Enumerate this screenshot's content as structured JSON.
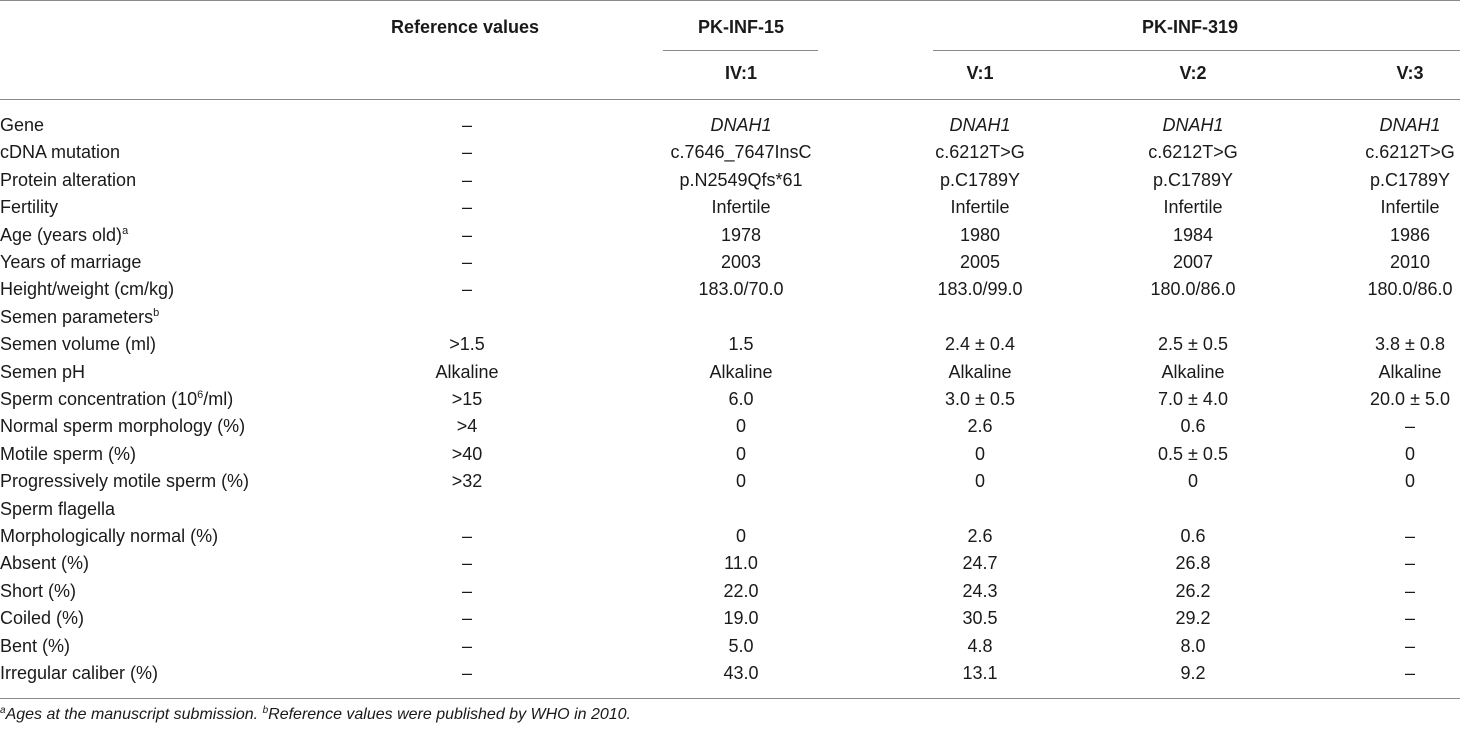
{
  "header": {
    "reference": "Reference values",
    "group1": "PK-INF-15",
    "group2": "PK-INF-319",
    "sub1": "IV:1",
    "sub2": "V:1",
    "sub3": "V:2",
    "sub4": "V:3"
  },
  "rows": [
    {
      "label": "Gene",
      "ref": "–",
      "v1": "DNAH1",
      "v2": "DNAH1",
      "v3": "DNAH1",
      "v4": "DNAH1"
    },
    {
      "label": "cDNA mutation",
      "ref": "–",
      "v1": "c.7646_7647InsC",
      "v2": "c.6212T>G",
      "v3": "c.6212T>G",
      "v4": "c.6212T>G"
    },
    {
      "label": "Protein alteration",
      "ref": "–",
      "v1": "p.N2549Qfs*61",
      "v2": "p.C1789Y",
      "v3": "p.C1789Y",
      "v4": "p.C1789Y"
    },
    {
      "label": "Fertility",
      "ref": "–",
      "v1": "Infertile",
      "v2": "Infertile",
      "v3": "Infertile",
      "v4": "Infertile"
    },
    {
      "label": "Age (years old)",
      "sup": "a",
      "ref": "–",
      "v1": "1978",
      "v2": "1980",
      "v3": "1984",
      "v4": "1986"
    },
    {
      "label": "Years of marriage",
      "ref": "–",
      "v1": "2003",
      "v2": "2005",
      "v3": "2007",
      "v4": "2010"
    },
    {
      "label": "Height/weight (cm/kg)",
      "ref": "–",
      "v1": "183.0/70.0",
      "v2": "183.0/99.0",
      "v3": "180.0/86.0",
      "v4": "180.0/86.0"
    },
    {
      "label": "Semen parameters",
      "sup": "b",
      "ref": "",
      "v1": "",
      "v2": "",
      "v3": "",
      "v4": ""
    },
    {
      "label": "Semen volume (ml)",
      "ref": ">1.5",
      "v1": "1.5",
      "v2": "2.4 ± 0.4",
      "v3": "2.5 ± 0.5",
      "v4": "3.8 ± 0.8"
    },
    {
      "label": "Semen pH",
      "ref": "Alkaline",
      "v1": "Alkaline",
      "v2": "Alkaline",
      "v3": "Alkaline",
      "v4": "Alkaline"
    },
    {
      "label": " Sperm concentration (10",
      "sup": "6",
      "label_after": "/ml)",
      "ref": ">15",
      "v1": "6.0",
      "v2": "3.0 ± 0.5",
      "v3": "7.0 ± 4.0",
      "v4": "20.0 ± 5.0"
    },
    {
      "label": "Normal sperm morphology (%)",
      "ref": ">4",
      "v1": "0",
      "v2": "2.6",
      "v3": "0.6",
      "v4": "–"
    },
    {
      "label": "Motile sperm (%)",
      "ref": ">40",
      "v1": "0",
      "v2": "0",
      "v3": "0.5 ± 0.5",
      "v4": "0"
    },
    {
      "label": "Progressively motile sperm (%)",
      "ref": ">32",
      "v1": "0",
      "v2": "0",
      "v3": "0",
      "v4": "0"
    },
    {
      "label": "Sperm flagella",
      "ref": "",
      "v1": "",
      "v2": "",
      "v3": "",
      "v4": ""
    },
    {
      "label": "Morphologically normal (%)",
      "ref": "–",
      "v1": "0",
      "v2": "2.6",
      "v3": "0.6",
      "v4": "–"
    },
    {
      "label": "Absent (%)",
      "ref": "–",
      "v1": "11.0",
      "v2": "24.7",
      "v3": "26.8",
      "v4": "–"
    },
    {
      "label": "Short (%)",
      "ref": "–",
      "v1": "22.0",
      "v2": "24.3",
      "v3": "26.2",
      "v4": "–"
    },
    {
      "label": "Coiled (%)",
      "ref": "–",
      "v1": "19.0",
      "v2": "30.5",
      "v3": "29.2",
      "v4": "–"
    },
    {
      "label": "Bent (%)",
      "ref": "–",
      "v1": "5.0",
      "v2": "4.8",
      "v3": "8.0",
      "v4": "–"
    },
    {
      "label": "Irregular caliber (%)",
      "ref": "–",
      "v1": "43.0",
      "v2": "13.1",
      "v3": "9.2",
      "v4": "–"
    }
  ],
  "footnote": {
    "sup_a": "a",
    "text_a": "Ages at the manuscript submission. ",
    "sup_b": "b",
    "text_b": "Reference values were published by WHO in 2010."
  }
}
